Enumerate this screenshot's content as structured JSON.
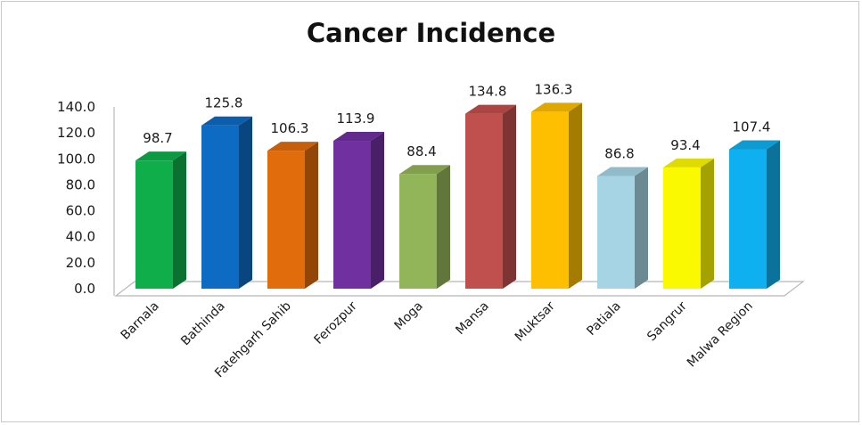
{
  "chart_data": {
    "type": "bar",
    "title": "Cancer Incidence",
    "xlabel": "",
    "ylabel": "",
    "ylim": [
      0,
      140
    ],
    "yticks": [
      "0.0",
      "20.0",
      "40.0",
      "60.0",
      "80.0",
      "100.0",
      "120.0",
      "140.0"
    ],
    "grid": false,
    "legend": "none",
    "bar_style": "3d",
    "categories": [
      "Barnala",
      "Bathinda",
      "Fatehgarh Sahib",
      "Ferozpur",
      "Moga",
      "Mansa",
      "Muktsar",
      "Patiala",
      "Sangrur",
      "Malwa Region"
    ],
    "values": [
      98.7,
      125.8,
      106.3,
      113.9,
      88.4,
      134.8,
      136.3,
      86.8,
      93.4,
      107.4
    ],
    "value_labels": [
      "98.7",
      "125.8",
      "106.3",
      "113.9",
      "88.4",
      "134.8",
      "136.3",
      "86.8",
      "93.4",
      "107.4"
    ],
    "colors": [
      "#0fae4a",
      "#0e6bc4",
      "#e16c0c",
      "#7030a0",
      "#93b55a",
      "#c0504d",
      "#fdbf00",
      "#a6d4e4",
      "#fbf901",
      "#0fb0ef"
    ]
  }
}
